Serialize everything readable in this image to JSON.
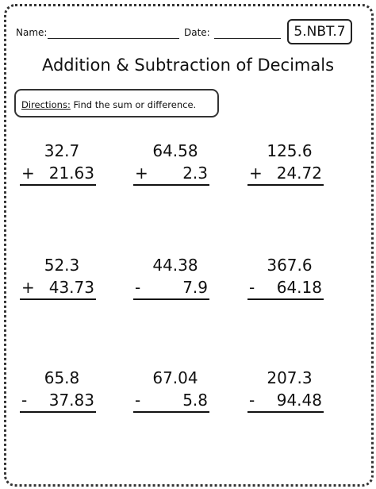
{
  "header": {
    "name_label": "Name:",
    "date_label": "Date:",
    "standard": "5.NBT.7"
  },
  "title": "Addition & Subtraction of Decimals",
  "directions": {
    "label": "Directions:",
    "text": "Find the sum or difference."
  },
  "problems": [
    {
      "top": "32.7",
      "op": "+",
      "bottom": "21.63"
    },
    {
      "top": "64.58",
      "op": "+",
      "bottom": "2.3"
    },
    {
      "top": "125.6",
      "op": "+",
      "bottom": "24.72"
    },
    {
      "top": "52.3",
      "op": "+",
      "bottom": "43.73"
    },
    {
      "top": "44.38",
      "op": "-",
      "bottom": "7.9"
    },
    {
      "top": "367.6",
      "op": "-",
      "bottom": "64.18"
    },
    {
      "top": "65.8",
      "op": "-",
      "bottom": "37.83"
    },
    {
      "top": "67.04",
      "op": "-",
      "bottom": "5.8"
    },
    {
      "top": "207.3",
      "op": "-",
      "bottom": "94.48"
    }
  ]
}
